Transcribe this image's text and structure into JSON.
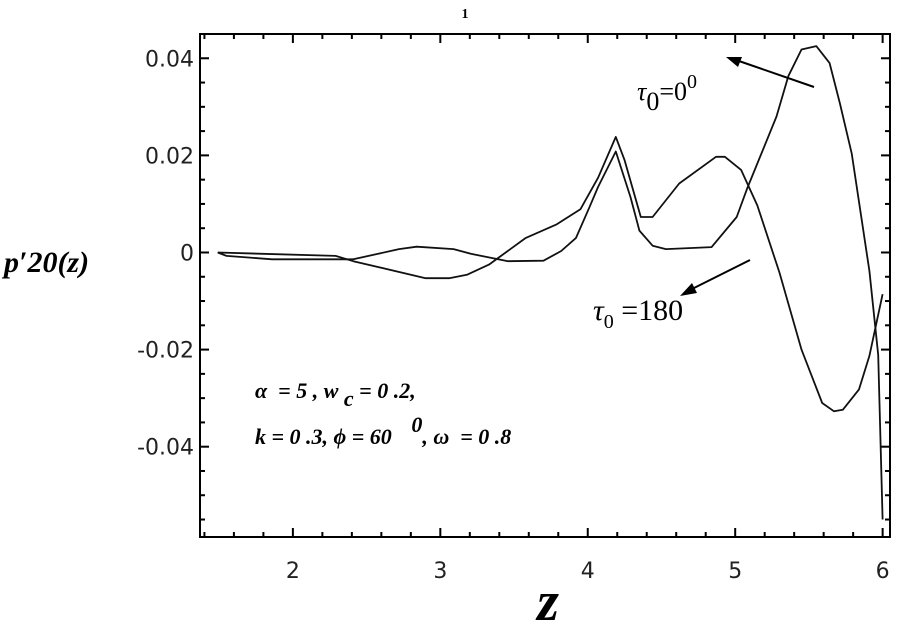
{
  "chart_data": {
    "type": "line",
    "title": "1",
    "xlabel": "z",
    "ylabel": "p′20(z)",
    "ylabel_parts": {
      "base": "p′",
      "sub": "20",
      "arg": "(z)"
    },
    "xlim": [
      1.37,
      6.05
    ],
    "ylim": [
      -0.0586,
      0.045
    ],
    "x_ticks": [
      2,
      3,
      4,
      5,
      6
    ],
    "x_tick_labels": [
      "2",
      "3",
      "4",
      "5",
      "6"
    ],
    "y_ticks": [
      0.04,
      0.02,
      0,
      -0.02,
      -0.04
    ],
    "y_tick_labels": [
      "0.04",
      "0.02",
      "0",
      "-0.02",
      "-0.04"
    ],
    "grid": false,
    "series": [
      {
        "name": "τ0=0⁰",
        "x": [
          1.49,
          1.55,
          1.86,
          2.41,
          2.72,
          2.84,
          3.09,
          3.21,
          3.46,
          3.7,
          3.82,
          3.92,
          4.01,
          4.07,
          4.19,
          4.29,
          4.35,
          4.44,
          4.53,
          4.84,
          5.01,
          5.08,
          5.28,
          5.36,
          5.45,
          5.55,
          5.64,
          5.71,
          5.79,
          5.91,
          5.97,
          6.0
        ],
        "y": [
          0.0,
          -0.0007,
          -0.0014,
          -0.0014,
          0.0007,
          0.0012,
          0.0007,
          -0.0003,
          -0.0018,
          -0.0017,
          0.0003,
          0.003,
          0.0092,
          0.0135,
          0.0208,
          0.0114,
          0.0045,
          0.0014,
          0.0007,
          0.0011,
          0.0073,
          0.0131,
          0.028,
          0.0363,
          0.0418,
          0.0425,
          0.039,
          0.0307,
          0.0204,
          -0.0038,
          -0.0211,
          -0.055
        ]
      },
      {
        "name": "τ0=180",
        "x": [
          1.49,
          2.29,
          2.41,
          2.9,
          3.06,
          3.18,
          3.33,
          3.58,
          3.79,
          3.95,
          4.07,
          4.19,
          4.25,
          4.36,
          4.44,
          4.62,
          4.87,
          4.93,
          5.04,
          5.15,
          5.3,
          5.45,
          5.59,
          5.67,
          5.73,
          5.84,
          5.91,
          6.0
        ],
        "y": [
          0.0,
          -0.0007,
          -0.0018,
          -0.0053,
          -0.0053,
          -0.0046,
          -0.0025,
          0.003,
          0.0058,
          0.0089,
          0.0154,
          0.0238,
          0.019,
          0.0073,
          0.0073,
          0.0142,
          0.0197,
          0.0197,
          0.017,
          0.0097,
          -0.0041,
          -0.02,
          -0.031,
          -0.0327,
          -0.0324,
          -0.0282,
          -0.0213,
          -0.0086
        ]
      }
    ],
    "annotations": {
      "tau0_label": {
        "sym": "τ",
        "sub": "0",
        "rest": "=0",
        "sup": "0"
      },
      "tau180_label": {
        "sym": "τ",
        "sub": "0",
        "rest": " =180"
      },
      "params_line1": {
        "a": "α  = 5 , w ",
        "sub": "c",
        "b": " = 0 .2,"
      },
      "params_line2": {
        "a": "k = 0 .3, ϕ = 60 ",
        "sup": "0",
        "b": ", ω  = 0 .8"
      }
    }
  }
}
